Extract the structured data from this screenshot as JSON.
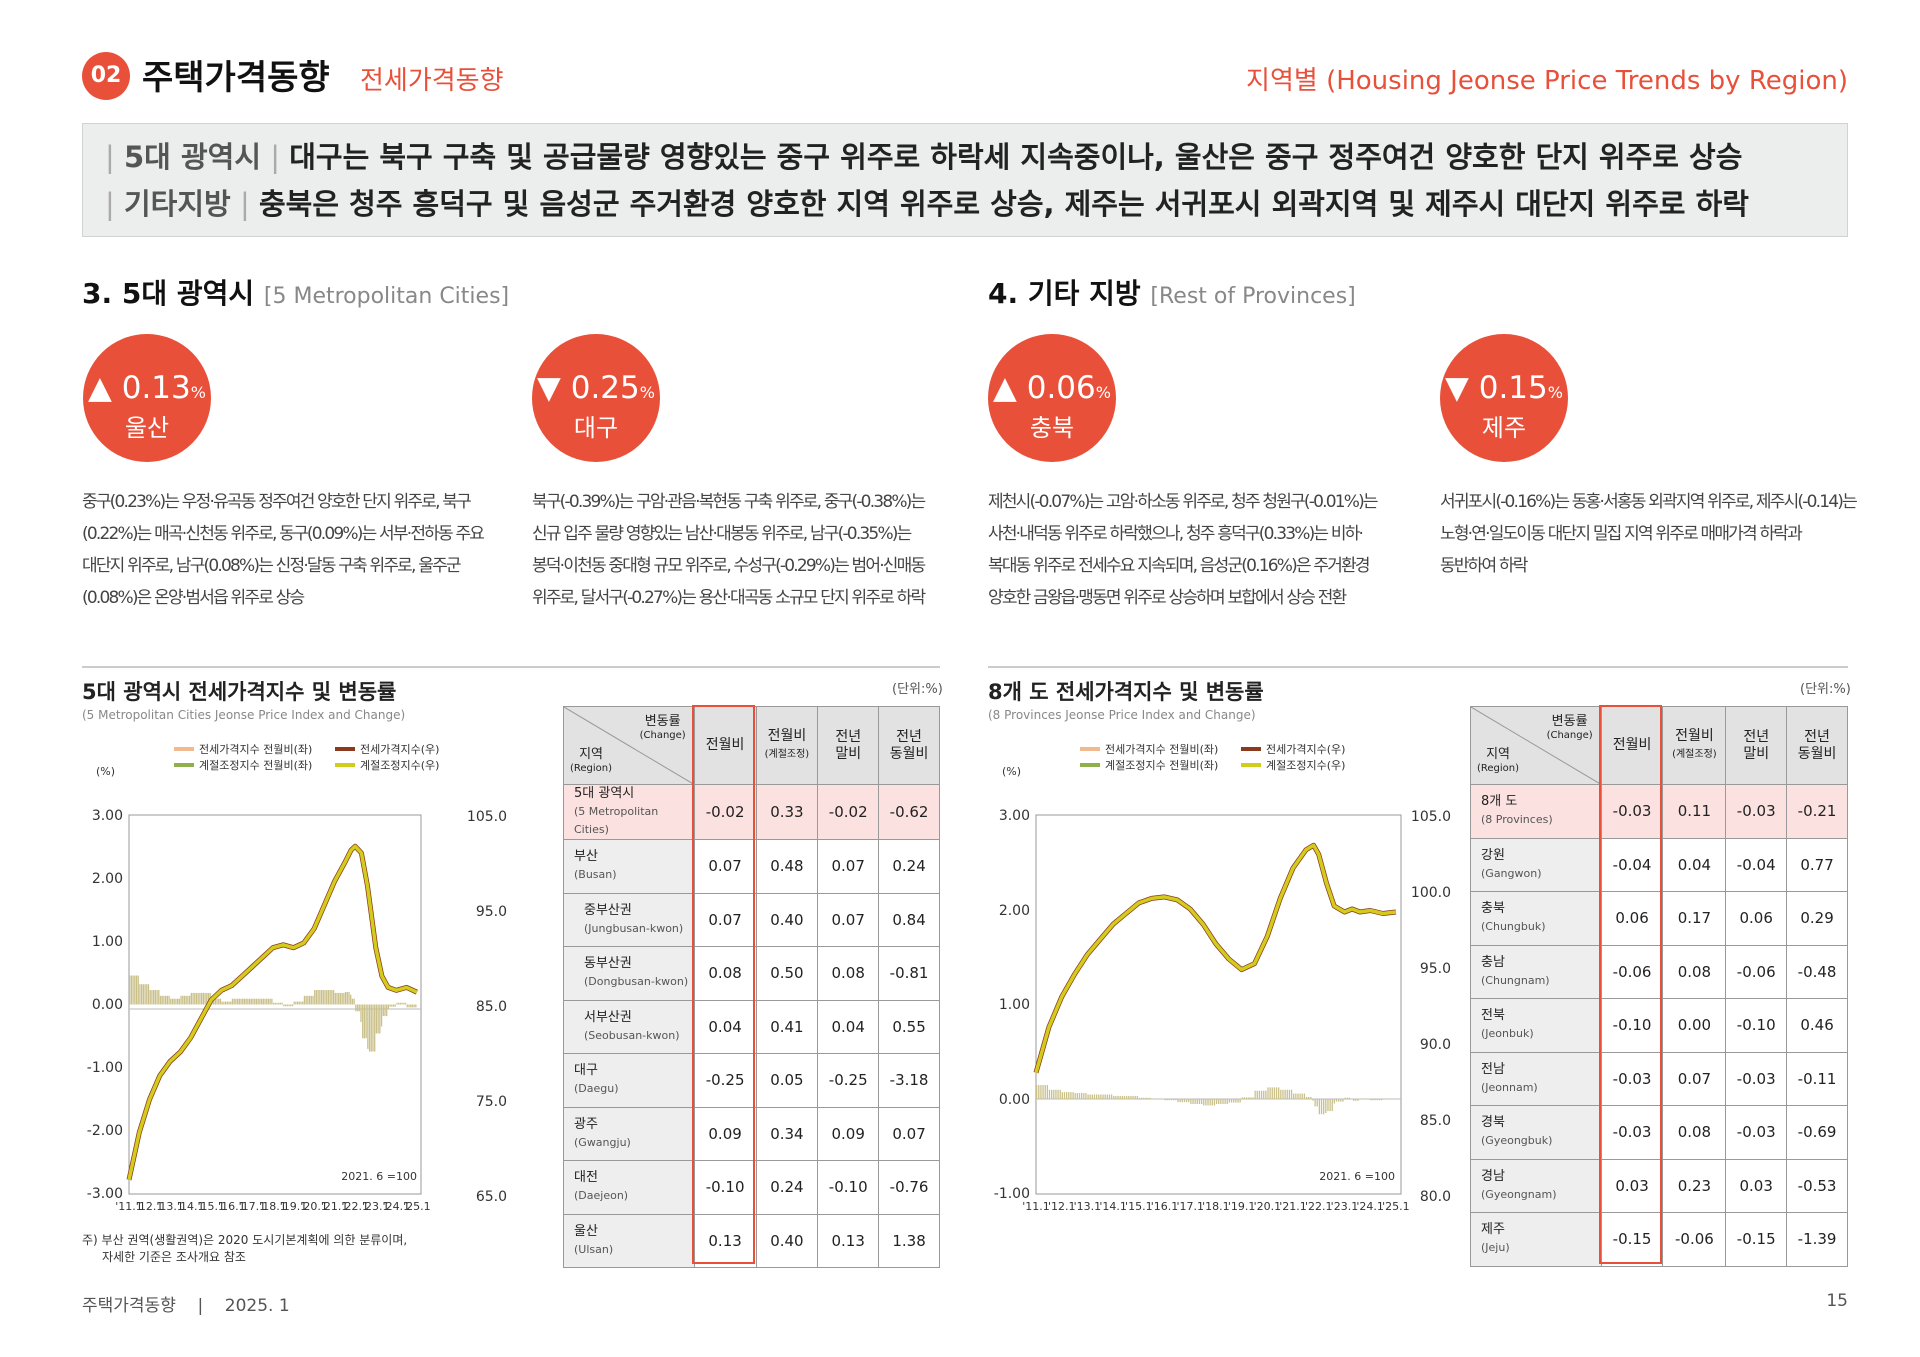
{
  "header": {
    "badge": "02",
    "title": "주택가격동향",
    "subtitle": "전세가격동향",
    "right": "지역별 (Housing Jeonse Price Trends by Region)"
  },
  "summary": [
    {
      "key": "5대 광역시",
      "text": "대구는 북구 구축 및 공급물량 영향있는 중구 위주로 하락세 지속중이나, 울산은 중구 정주여건 양호한 단지 위주로 상승"
    },
    {
      "key": "기타지방",
      "text": "충북은 청주 흥덕구 및 음성군 주거환경 양호한 지역 위주로 상승, 제주는 서귀포시 외곽지역 및 제주시 대단지 위주로 하락"
    }
  ],
  "left": {
    "title": "3. 5대 광역시",
    "title_en": "[5 Metropolitan Cities]",
    "cards": [
      {
        "arrow": "▲",
        "value": "0.13",
        "pct": "%",
        "region": "울산",
        "desc": [
          "중구(0.23%)는 우정·유곡동 정주여건 양호한 단지 위주로, 북구",
          "(0.22%)는 매곡·신천동 위주로, 동구(0.09%)는 서부·전하동 주요",
          "대단지 위주로, 남구(0.08%)는 신정·달동 구축 위주로, 울주군",
          "(0.08%)은 온양·범서읍 위주로 상승"
        ]
      },
      {
        "arrow": "▼",
        "value": "0.25",
        "pct": "%",
        "region": "대구",
        "desc": [
          "북구(-0.39%)는 구암·관음·복현동 구축 위주로, 중구(-0.38%)는",
          "신규 입주 물량 영향있는 남산·대봉동 위주로, 남구(-0.35%)는",
          "봉덕·이천동 중대형 규모 위주로, 수성구(-0.29%)는 범어·신매동",
          "위주로, 달서구(-0.27%)는 용산·대곡동 소규모 단지 위주로 하락"
        ]
      }
    ],
    "chart_title": "5대 광역시 전세가격지수 및 변동률",
    "chart_subtitle": "(5 Metropolitan Cities Jeonse Price Index and Change)",
    "unit": "(단위:%)",
    "pct_label": "(%)",
    "legend": [
      "전세가격지수 전월비(좌)",
      "전세가격지수(우)",
      "계절조정지수 전월비(좌)",
      "계절조정지수(우)"
    ],
    "base_note": "2021. 6 =100",
    "note": [
      "주) 부산 권역(생활권역)은 2020 도시기본계획에 의한 분류이며,",
      "자세한 기준은 조사개요 참조"
    ],
    "table": {
      "header": {
        "change": "변동률",
        "change_en": "(Change)",
        "region": "지역",
        "region_en": "(Region)",
        "c1": "전월비",
        "c2a": "전월비",
        "c2b": "(계절조정)",
        "c3a": "전년",
        "c3b": "말비",
        "c4a": "전년",
        "c4b": "동월비"
      },
      "rows": [
        {
          "ko": "5대 광역시",
          "en": "(5 Metropolitan Cities)",
          "v": [
            "-0.02",
            "0.33",
            "-0.02",
            "-0.62"
          ],
          "hl": true,
          "indent": false
        },
        {
          "ko": "부산",
          "en": "(Busan)",
          "v": [
            "0.07",
            "0.48",
            "0.07",
            "0.24"
          ],
          "indent": false
        },
        {
          "ko": "중부산권",
          "en": "(Jungbusan-kwon)",
          "v": [
            "0.07",
            "0.40",
            "0.07",
            "0.84"
          ],
          "indent": true
        },
        {
          "ko": "동부산권",
          "en": "(Dongbusan-kwon)",
          "v": [
            "0.08",
            "0.50",
            "0.08",
            "-0.81"
          ],
          "indent": true
        },
        {
          "ko": "서부산권",
          "en": "(Seobusan-kwon)",
          "v": [
            "0.04",
            "0.41",
            "0.04",
            "0.55"
          ],
          "indent": true
        },
        {
          "ko": "대구",
          "en": "(Daegu)",
          "v": [
            "-0.25",
            "0.05",
            "-0.25",
            "-3.18"
          ],
          "indent": false
        },
        {
          "ko": "광주",
          "en": "(Gwangju)",
          "v": [
            "0.09",
            "0.34",
            "0.09",
            "0.07"
          ],
          "indent": false
        },
        {
          "ko": "대전",
          "en": "(Daejeon)",
          "v": [
            "-0.10",
            "0.24",
            "-0.10",
            "-0.76"
          ],
          "indent": false
        },
        {
          "ko": "울산",
          "en": "(Ulsan)",
          "v": [
            "0.13",
            "0.40",
            "0.13",
            "1.38"
          ],
          "indent": false
        }
      ]
    }
  },
  "right": {
    "title": "4. 기타 지방",
    "title_en": "[Rest of Provinces]",
    "cards": [
      {
        "arrow": "▲",
        "value": "0.06",
        "pct": "%",
        "region": "충북",
        "desc": [
          "제천시(-0.07%)는 고암·하소동 위주로, 청주 청원구(-0.01%)는",
          "사천·내덕동 위주로 하락했으나, 청주 흥덕구(0.33%)는 비하·",
          "복대동 위주로 전세수요 지속되며, 음성군(0.16%)은 주거환경",
          "양호한 금왕읍·맹동면 위주로 상승하며 보합에서 상승 전환"
        ]
      },
      {
        "arrow": "▼",
        "value": "0.15",
        "pct": "%",
        "region": "제주",
        "desc": [
          "서귀포시(-0.16%)는 동홍·서홍동 외곽지역 위주로, 제주시(-0.14)는",
          "노형·연·일도이동 대단지 밀집 지역 위주로 매매가격 하락과",
          "동반하여 하락"
        ]
      }
    ],
    "chart_title": "8개 도 전세가격지수 및 변동률",
    "chart_subtitle": "(8 Provinces Jeonse Price Index and Change)",
    "unit": "(단위:%)",
    "pct_label": "(%)",
    "legend": [
      "전세가격지수 전월비(좌)",
      "전세가격지수(우)",
      "계절조정지수 전월비(좌)",
      "계절조정지수(우)"
    ],
    "base_note": "2021. 6 =100",
    "table": {
      "header": {
        "change": "변동률",
        "change_en": "(Change)",
        "region": "지역",
        "region_en": "(Region)",
        "c1": "전월비",
        "c2a": "전월비",
        "c2b": "(계절조정)",
        "c3a": "전년",
        "c3b": "말비",
        "c4a": "전년",
        "c4b": "동월비"
      },
      "rows": [
        {
          "ko": "8개 도",
          "en": "(8 Provinces)",
          "v": [
            "-0.03",
            "0.11",
            "-0.03",
            "-0.21"
          ],
          "hl": true,
          "indent": false
        },
        {
          "ko": "강원",
          "en": "(Gangwon)",
          "v": [
            "-0.04",
            "0.04",
            "-0.04",
            "0.77"
          ],
          "indent": false
        },
        {
          "ko": "충북",
          "en": "(Chungbuk)",
          "v": [
            "0.06",
            "0.17",
            "0.06",
            "0.29"
          ],
          "indent": false
        },
        {
          "ko": "충남",
          "en": "(Chungnam)",
          "v": [
            "-0.06",
            "0.08",
            "-0.06",
            "-0.48"
          ],
          "indent": false
        },
        {
          "ko": "전북",
          "en": "(Jeonbuk)",
          "v": [
            "-0.10",
            "0.00",
            "-0.10",
            "0.46"
          ],
          "indent": false
        },
        {
          "ko": "전남",
          "en": "(Jeonnam)",
          "v": [
            "-0.03",
            "0.07",
            "-0.03",
            "-0.11"
          ],
          "indent": false
        },
        {
          "ko": "경북",
          "en": "(Gyeongbuk)",
          "v": [
            "-0.03",
            "0.08",
            "-0.03",
            "-0.69"
          ],
          "indent": false
        },
        {
          "ko": "경남",
          "en": "(Gyeongnam)",
          "v": [
            "0.03",
            "0.23",
            "0.03",
            "-0.53"
          ],
          "indent": false
        },
        {
          "ko": "제주",
          "en": "(Jeju)",
          "v": [
            "-0.15",
            "-0.06",
            "-0.15",
            "-1.39"
          ],
          "indent": false
        }
      ]
    }
  },
  "chart_data": [
    {
      "type": "line",
      "title": "5대 광역시 전세가격지수 및 변동률",
      "x_ticks": [
        "'11.1",
        "'12.1",
        "'13.1",
        "'14.1",
        "'15.1",
        "'16.1",
        "'17.1",
        "'18.1",
        "'19.1",
        "'20.1",
        "'21.1",
        "'22.1",
        "'23.1",
        "'24.1",
        "'25.1"
      ],
      "y_left": {
        "ticks": [
          "3.00",
          "2.00",
          "1.00",
          "0.00",
          "-1.00",
          "-2.00",
          "-3.00"
        ],
        "range": [
          -3,
          3
        ]
      },
      "y_right": {
        "ticks": [
          "105.0",
          "95.0",
          "85.0",
          "75.0",
          "65.0"
        ],
        "range": [
          65,
          105
        ]
      },
      "index_series": {
        "x": [
          2011.0,
          2011.5,
          2012.0,
          2012.5,
          2013.0,
          2013.5,
          2014.0,
          2014.5,
          2015.0,
          2015.5,
          2016.0,
          2016.5,
          2017.0,
          2017.5,
          2018.0,
          2018.5,
          2019.0,
          2019.5,
          2020.0,
          2020.5,
          2021.0,
          2021.5,
          2021.8,
          2022.0,
          2022.3,
          2022.6,
          2023.0,
          2023.3,
          2023.6,
          2024.0,
          2024.5,
          2025.0
        ],
        "y": [
          66.5,
          71.5,
          75.0,
          77.5,
          79.0,
          80.0,
          81.5,
          83.5,
          85.5,
          86.5,
          87.0,
          88.0,
          89.0,
          90.0,
          91.0,
          91.3,
          91.0,
          91.5,
          93.0,
          95.5,
          98.0,
          100.0,
          101.3,
          101.7,
          101.0,
          97.5,
          91.0,
          88.0,
          86.8,
          86.5,
          86.8,
          86.3
        ]
      },
      "series": [
        {
          "name": "전세가격지수 전월비(좌)"
        },
        {
          "name": "전세가격지수(우)"
        },
        {
          "name": "계절조정지수 전월비(좌)"
        },
        {
          "name": "계절조정지수(우)"
        }
      ]
    },
    {
      "type": "line",
      "title": "8개 도 전세가격지수 및 변동률",
      "x_ticks": [
        "'11.1",
        "'12.1",
        "'13.1",
        "'14.1",
        "'15.1",
        "'16.1",
        "'17.1",
        "'18.1",
        "'19.1",
        "'20.1",
        "'21.1",
        "'22.1",
        "'23.1",
        "'24.1",
        "'25.1"
      ],
      "y_left": {
        "ticks": [
          "3.00",
          "2.00",
          "1.00",
          "0.00",
          "-1.00"
        ],
        "range": [
          -1,
          3
        ]
      },
      "y_right": {
        "ticks": [
          "105.0",
          "100.0",
          "95.0",
          "90.0",
          "85.0",
          "80.0"
        ],
        "range": [
          80,
          105
        ]
      },
      "index_series": {
        "x": [
          2011.0,
          2011.5,
          2012.0,
          2012.5,
          2013.0,
          2013.5,
          2014.0,
          2014.5,
          2015.0,
          2015.5,
          2016.0,
          2016.5,
          2017.0,
          2017.5,
          2018.0,
          2018.5,
          2019.0,
          2019.5,
          2020.0,
          2020.5,
          2021.0,
          2021.5,
          2021.8,
          2022.0,
          2022.3,
          2022.6,
          2023.0,
          2023.3,
          2023.6,
          2024.0,
          2024.5,
          2025.0
        ],
        "y": [
          88.0,
          91.0,
          93.0,
          94.5,
          95.8,
          96.8,
          97.8,
          98.5,
          99.2,
          99.5,
          99.6,
          99.4,
          98.8,
          97.8,
          96.5,
          95.5,
          94.8,
          95.2,
          97.0,
          99.5,
          101.5,
          102.7,
          103.0,
          102.4,
          100.5,
          99.0,
          98.6,
          98.8,
          98.6,
          98.7,
          98.5,
          98.6
        ]
      },
      "series": [
        {
          "name": "전세가격지수 전월비(좌)"
        },
        {
          "name": "전세가격지수(우)"
        },
        {
          "name": "계절조정지수 전월비(좌)"
        },
        {
          "name": "계절조정지수(우)"
        }
      ]
    }
  ],
  "colors": {
    "accent": "#e8503a",
    "idx_line": "#8b3a1d",
    "sa_line": "#d4cc1c",
    "bar_fill": "#c9c08a",
    "hl_row": "#fbe2e0"
  },
  "footer": {
    "left": "주택가격동향    |    2025. 1",
    "page": "15"
  }
}
